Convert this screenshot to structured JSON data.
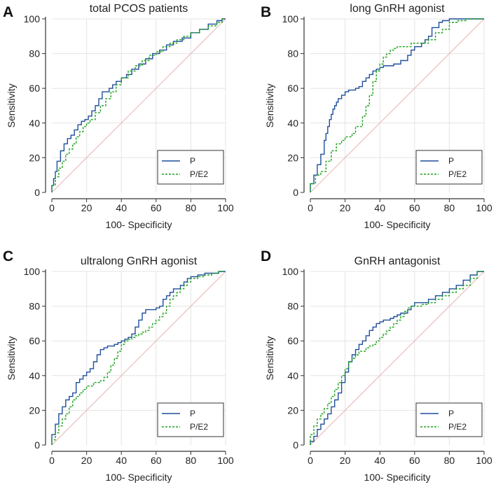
{
  "colors": {
    "p": "#1f4e9c",
    "pe2": "#1aa31a",
    "diagonal": "#e8b4b4",
    "grid": "#e4e4e4",
    "axis": "#333333"
  },
  "chart_data": [
    {
      "type": "line",
      "panel_label": "A",
      "title": "total PCOS patients",
      "xlabel": "100- Specificity",
      "ylabel": "Sensitivity",
      "xlim": [
        0,
        100
      ],
      "ylim": [
        0,
        100
      ],
      "xticks": [
        "0",
        "20",
        "40",
        "60",
        "80",
        "100"
      ],
      "yticks": [
        "0",
        "20",
        "40",
        "60",
        "80",
        "100"
      ],
      "grid": true,
      "legend_position": "bottom-right",
      "legend": [
        "P",
        "P/E2"
      ],
      "series": [
        {
          "name": "P",
          "style": "solid",
          "x": [
            0,
            1,
            2,
            3,
            5,
            7,
            9,
            11,
            13,
            15,
            17,
            19,
            21,
            23,
            25,
            27,
            29,
            31,
            33,
            35,
            37,
            40,
            43,
            46,
            50,
            54,
            58,
            62,
            66,
            70,
            75,
            80,
            85,
            90,
            95,
            98,
            100
          ],
          "y": [
            0,
            4,
            8,
            12,
            18,
            24,
            28,
            31,
            33,
            36,
            39,
            41,
            42,
            44,
            47,
            50,
            54,
            58,
            58,
            60,
            62,
            64,
            66,
            68,
            71,
            74,
            77,
            80,
            82,
            85,
            87,
            89,
            92,
            94,
            97,
            99,
            100
          ]
        },
        {
          "name": "P/E2",
          "style": "dashed",
          "x": [
            0,
            2,
            4,
            6,
            8,
            10,
            12,
            14,
            16,
            18,
            20,
            22,
            25,
            28,
            31,
            34,
            37,
            40,
            44,
            48,
            52,
            56,
            60,
            64,
            68,
            72,
            76,
            80,
            85,
            90,
            95,
            98,
            100
          ],
          "y": [
            0,
            4,
            9,
            14,
            18,
            22,
            25,
            28,
            32,
            35,
            38,
            40,
            42,
            46,
            50,
            54,
            58,
            62,
            66,
            70,
            73,
            76,
            79,
            81,
            84,
            86,
            88,
            90,
            92,
            94,
            96,
            98,
            100
          ]
        }
      ]
    },
    {
      "type": "line",
      "panel_label": "B",
      "title": "long GnRH agonist",
      "xlabel": "100- Specificity",
      "ylabel": "Sensitivity",
      "xlim": [
        0,
        100
      ],
      "ylim": [
        0,
        100
      ],
      "xticks": [
        "0",
        "20",
        "40",
        "60",
        "80",
        "100"
      ],
      "yticks": [
        "0",
        "20",
        "40",
        "60",
        "80",
        "100"
      ],
      "grid": true,
      "legend_position": "bottom-right",
      "legend": [
        "P",
        "P/E2"
      ],
      "series": [
        {
          "name": "P",
          "style": "solid",
          "x": [
            0,
            2,
            4,
            6,
            8,
            9,
            10,
            11,
            12,
            13,
            14,
            15,
            16,
            18,
            20,
            22,
            24,
            26,
            28,
            30,
            32,
            34,
            36,
            38,
            40,
            42,
            44,
            48,
            52,
            56,
            58,
            60,
            64,
            66,
            68,
            70,
            74,
            76,
            78,
            80,
            85,
            90,
            95,
            100
          ],
          "y": [
            0,
            5,
            10,
            16,
            22,
            30,
            34,
            38,
            42,
            45,
            48,
            50,
            52,
            54,
            56,
            58,
            59,
            59,
            60,
            61,
            64,
            66,
            68,
            70,
            71,
            72,
            73,
            73,
            74,
            76,
            79,
            82,
            84,
            86,
            88,
            90,
            95,
            98,
            99,
            99,
            100,
            100,
            100,
            100
          ]
        },
        {
          "name": "P/E2",
          "style": "dashed",
          "x": [
            0,
            3,
            6,
            9,
            12,
            15,
            18,
            20,
            24,
            26,
            28,
            30,
            32,
            34,
            36,
            38,
            40,
            42,
            44,
            46,
            48,
            50,
            54,
            58,
            60,
            64,
            68,
            72,
            76,
            80,
            85,
            90,
            95,
            100
          ],
          "y": [
            0,
            5,
            10,
            12,
            18,
            24,
            28,
            30,
            32,
            34,
            38,
            38,
            44,
            50,
            56,
            64,
            70,
            74,
            78,
            80,
            82,
            83,
            84,
            84,
            86,
            86,
            86,
            88,
            92,
            94,
            98,
            99,
            100,
            100
          ]
        }
      ]
    },
    {
      "type": "line",
      "panel_label": "C",
      "title": "ultralong GnRH agonist",
      "xlabel": "100- Specificity",
      "ylabel": "Sensitivity",
      "xlim": [
        0,
        100
      ],
      "ylim": [
        0,
        100
      ],
      "xticks": [
        "0",
        "20",
        "40",
        "60",
        "80",
        "100"
      ],
      "yticks": [
        "0",
        "20",
        "40",
        "60",
        "80",
        "100"
      ],
      "grid": true,
      "legend_position": "bottom-right",
      "legend": [
        "P",
        "P/E2"
      ],
      "series": [
        {
          "name": "P",
          "style": "solid",
          "x": [
            0,
            2,
            4,
            6,
            8,
            10,
            12,
            14,
            16,
            18,
            20,
            22,
            24,
            26,
            28,
            30,
            32,
            34,
            36,
            38,
            40,
            42,
            44,
            46,
            48,
            50,
            52,
            54,
            56,
            58,
            60,
            62,
            64,
            66,
            68,
            70,
            72,
            74,
            76,
            78,
            80,
            84,
            88,
            92,
            96,
            100
          ],
          "y": [
            0,
            6,
            12,
            18,
            22,
            26,
            28,
            30,
            36,
            38,
            40,
            42,
            44,
            48,
            52,
            55,
            56,
            57,
            57,
            58,
            59,
            60,
            61,
            62,
            64,
            68,
            72,
            76,
            78,
            78,
            78,
            79,
            80,
            84,
            86,
            88,
            90,
            90,
            92,
            94,
            96,
            97,
            98,
            99,
            99,
            100
          ]
        },
        {
          "name": "P/E2",
          "style": "dashed",
          "x": [
            0,
            2,
            4,
            6,
            8,
            10,
            12,
            14,
            16,
            18,
            20,
            22,
            24,
            26,
            28,
            30,
            32,
            34,
            36,
            38,
            40,
            42,
            44,
            46,
            48,
            50,
            52,
            54,
            56,
            58,
            60,
            62,
            64,
            66,
            68,
            70,
            72,
            74,
            76,
            78,
            80,
            84,
            88,
            92,
            96,
            100
          ],
          "y": [
            0,
            3,
            7,
            11,
            15,
            18,
            22,
            26,
            28,
            30,
            32,
            34,
            34,
            36,
            36,
            37,
            39,
            42,
            46,
            50,
            54,
            58,
            60,
            61,
            62,
            63,
            64,
            65,
            66,
            68,
            70,
            72,
            74,
            76,
            80,
            84,
            86,
            88,
            90,
            92,
            94,
            96,
            97,
            98,
            99,
            100
          ]
        }
      ]
    },
    {
      "type": "line",
      "panel_label": "D",
      "title": "GnRH antagonist",
      "xlabel": "100- Specificity",
      "ylabel": "Sensitivity",
      "xlim": [
        0,
        100
      ],
      "ylim": [
        0,
        100
      ],
      "xticks": [
        "0",
        "20",
        "40",
        "60",
        "80",
        "100"
      ],
      "yticks": [
        "0",
        "20",
        "40",
        "60",
        "80",
        "100"
      ],
      "grid": true,
      "legend_position": "bottom-right",
      "legend": [
        "P",
        "P/E2"
      ],
      "series": [
        {
          "name": "P",
          "style": "solid",
          "x": [
            0,
            2,
            4,
            6,
            8,
            10,
            12,
            14,
            16,
            18,
            20,
            22,
            24,
            26,
            28,
            30,
            32,
            34,
            36,
            38,
            40,
            42,
            44,
            46,
            48,
            50,
            52,
            54,
            56,
            58,
            60,
            64,
            68,
            72,
            76,
            80,
            84,
            88,
            92,
            96,
            100
          ],
          "y": [
            0,
            2,
            5,
            9,
            12,
            15,
            18,
            22,
            26,
            30,
            36,
            42,
            48,
            52,
            55,
            58,
            60,
            63,
            66,
            68,
            70,
            71,
            72,
            72,
            73,
            74,
            75,
            76,
            76,
            78,
            80,
            82,
            82,
            84,
            86,
            88,
            90,
            92,
            95,
            98,
            100
          ]
        },
        {
          "name": "P/E2",
          "style": "dashed",
          "x": [
            0,
            2,
            4,
            6,
            8,
            10,
            12,
            14,
            16,
            18,
            20,
            22,
            24,
            26,
            28,
            30,
            32,
            34,
            36,
            38,
            40,
            42,
            44,
            46,
            48,
            50,
            52,
            54,
            56,
            58,
            60,
            64,
            68,
            72,
            76,
            80,
            84,
            88,
            92,
            96,
            100
          ],
          "y": [
            0,
            6,
            11,
            15,
            18,
            21,
            24,
            28,
            32,
            36,
            40,
            44,
            48,
            50,
            52,
            54,
            54,
            56,
            57,
            58,
            60,
            62,
            64,
            66,
            68,
            70,
            72,
            74,
            77,
            79,
            80,
            80,
            81,
            82,
            84,
            86,
            88,
            90,
            92,
            96,
            100
          ]
        }
      ]
    }
  ]
}
